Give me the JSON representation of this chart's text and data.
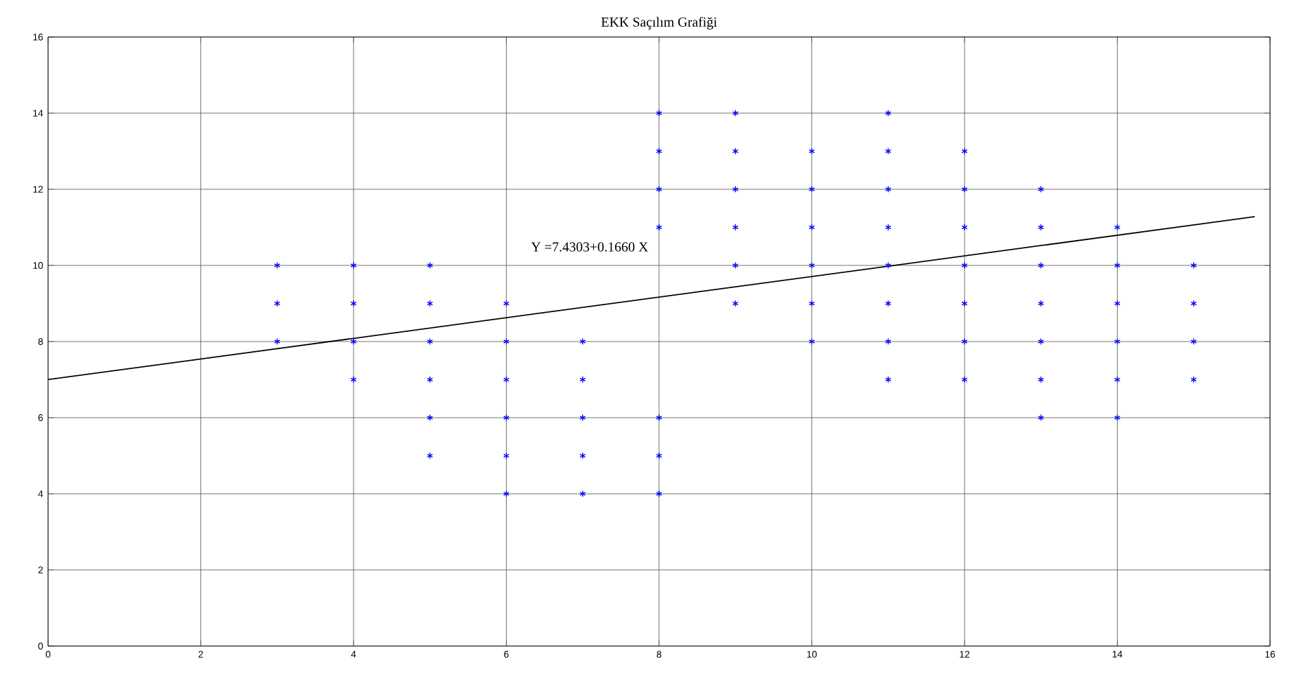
{
  "chart_data": {
    "type": "scatter",
    "title": "EKK Saçılım Grafiği",
    "xlim": [
      0,
      16
    ],
    "ylim": [
      0,
      16
    ],
    "xticks": [
      0,
      2,
      4,
      6,
      8,
      10,
      12,
      14,
      16
    ],
    "yticks": [
      0,
      2,
      4,
      6,
      8,
      10,
      12,
      14,
      16
    ],
    "grid": true,
    "series": [
      {
        "color": "#0000ff",
        "marker": "cross",
        "x": [
          3,
          3,
          3,
          4,
          4,
          4,
          4,
          5,
          5,
          5,
          5,
          5,
          5,
          6,
          6,
          6,
          6,
          6,
          6,
          7,
          7,
          7,
          7,
          7,
          8,
          8,
          8,
          8,
          8,
          8,
          8,
          9,
          9,
          9,
          9,
          9,
          9,
          10,
          10,
          10,
          10,
          10,
          10,
          11,
          11,
          11,
          11,
          11,
          11,
          11,
          11,
          12,
          12,
          12,
          12,
          12,
          12,
          12,
          13,
          13,
          13,
          13,
          13,
          13,
          13,
          14,
          14,
          14,
          14,
          14,
          14,
          15,
          15,
          15,
          15
        ],
        "values": [
          8,
          9,
          10,
          7,
          8,
          9,
          10,
          5,
          6,
          7,
          8,
          9,
          10,
          4,
          5,
          6,
          7,
          8,
          9,
          4,
          5,
          6,
          7,
          8,
          4,
          5,
          6,
          11,
          12,
          13,
          14,
          9,
          10,
          11,
          12,
          13,
          14,
          8,
          9,
          10,
          11,
          12,
          13,
          7,
          8,
          9,
          10,
          11,
          12,
          13,
          14,
          7,
          8,
          9,
          10,
          11,
          12,
          13,
          6,
          7,
          8,
          9,
          10,
          11,
          12,
          6,
          7,
          8,
          9,
          10,
          11,
          7,
          8,
          9,
          10
        ]
      },
      {
        "type": "line",
        "color": "#000000",
        "line_style": "solid",
        "x": [
          0,
          15.8
        ],
        "values": [
          7.0,
          11.28
        ]
      }
    ],
    "annotations": [
      "Y =7.4303+0.1660 X"
    ]
  }
}
